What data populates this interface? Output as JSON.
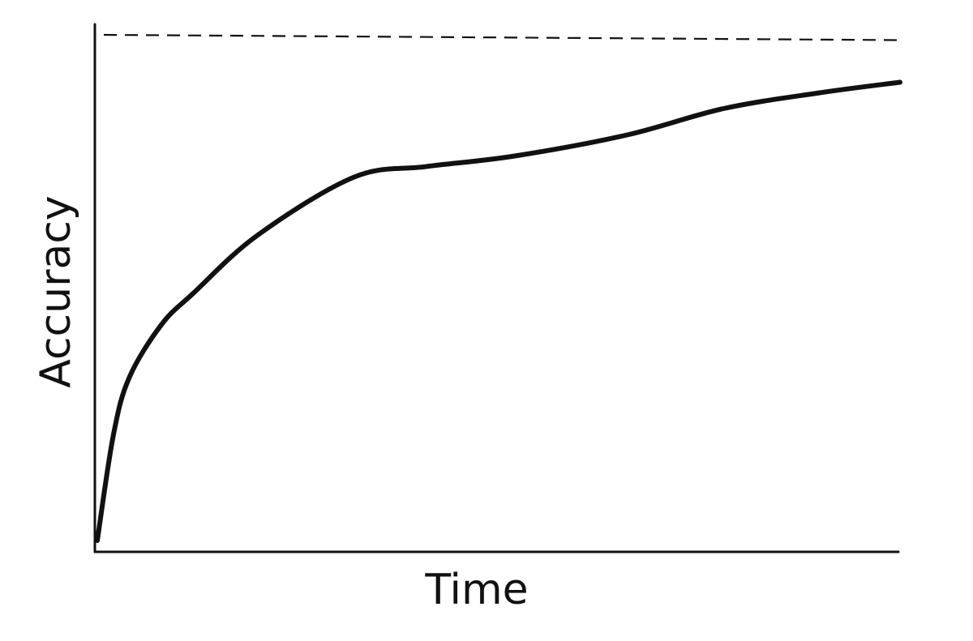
{
  "chart_data": {
    "type": "line",
    "title": "",
    "xlabel": "Time",
    "ylabel": "Accuracy",
    "xlim": [
      0,
      100
    ],
    "ylim": [
      0,
      100
    ],
    "grid": false,
    "legend": "none",
    "colors": {
      "line": "#111111",
      "background": "#ffffff"
    },
    "series": [
      {
        "x": [
          0,
          2,
          4,
          8,
          12,
          20,
          32,
          41,
          52,
          66,
          78,
          90,
          100
        ],
        "y": [
          2,
          22,
          33,
          43,
          49,
          60,
          71,
          73,
          75,
          79,
          84,
          87,
          89
        ]
      }
    ],
    "reference_lines": [
      {
        "orientation": "horizontal",
        "style": "dashed",
        "y_start": 98,
        "y_end": 97
      }
    ]
  }
}
